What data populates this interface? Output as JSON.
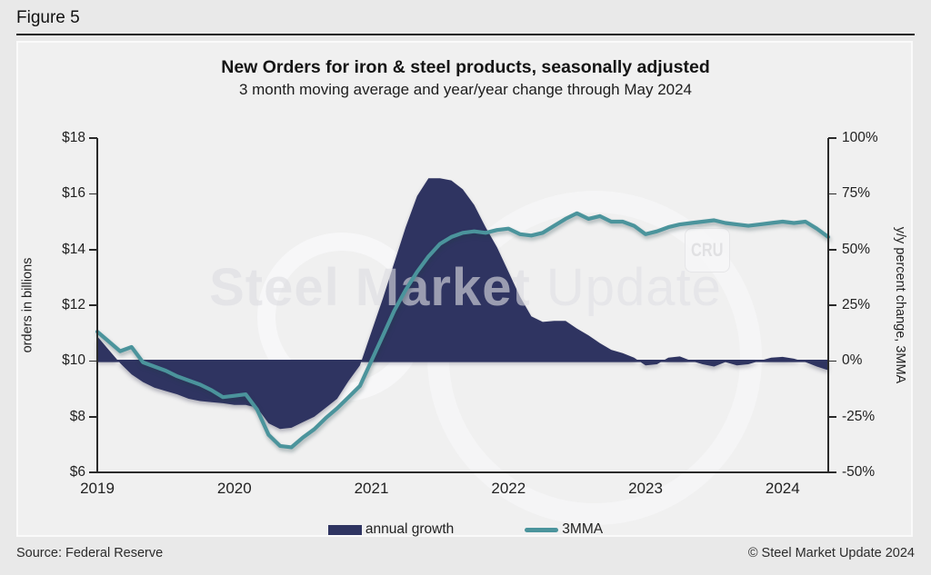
{
  "page": {
    "figure_label": "Figure 5",
    "source": "Source: Federal Reserve",
    "copyright": "© Steel Market Update 2024"
  },
  "chart": {
    "title": "New Orders for iron & steel products, seasonally adjusted",
    "subtitle": "3 month moving average and year/year change through May 2024"
  },
  "axes": {
    "left": {
      "label": "orders in billions",
      "range": [
        6,
        18
      ],
      "ticks": [
        {
          "value": 18,
          "label": "$18"
        },
        {
          "value": 16,
          "label": "$16"
        },
        {
          "value": 14,
          "label": "$14"
        },
        {
          "value": 12,
          "label": "$12"
        },
        {
          "value": 10,
          "label": "$10"
        },
        {
          "value": 8,
          "label": "$8"
        },
        {
          "value": 6,
          "label": "$6"
        }
      ]
    },
    "right": {
      "label": "y/y percent change, 3MMA",
      "range": [
        -50,
        100
      ],
      "ticks": [
        {
          "value": 100,
          "label": "100%"
        },
        {
          "value": 75,
          "label": "75%"
        },
        {
          "value": 50,
          "label": "50%"
        },
        {
          "value": 25,
          "label": "25%"
        },
        {
          "value": 0,
          "label": "0%"
        },
        {
          "value": -25,
          "label": "-25%"
        },
        {
          "value": -50,
          "label": "-50%"
        }
      ]
    },
    "x": {
      "ticks": [
        {
          "month_index": 0,
          "label": "2019"
        },
        {
          "month_index": 12,
          "label": "2020"
        },
        {
          "month_index": 24,
          "label": "2021"
        },
        {
          "month_index": 36,
          "label": "2022"
        },
        {
          "month_index": 48,
          "label": "2023"
        },
        {
          "month_index": 60,
          "label": "2024"
        }
      ]
    }
  },
  "legend": [
    {
      "label": "annual growth",
      "type": "area",
      "color": "#2f3461"
    },
    {
      "label": "3MMA",
      "type": "line",
      "color": "#4b949c"
    }
  ],
  "watermark": {
    "brand_bold": "Steel Market",
    "brand_light": "Update",
    "badge": "CRU"
  },
  "colors": {
    "navy": "#2f3461",
    "teal": "#4b949c",
    "panel_bg": "#f0f0f0",
    "page_bg": "#e9e9e9",
    "axis": "#2a2a2a"
  },
  "chart_data": {
    "type": "combo",
    "frequency": "monthly",
    "x_start": "2019-01",
    "x_end": "2024-05",
    "title": "New Orders for iron & steel products, seasonally adjusted",
    "subtitle": "3 month moving average and year/year change through May 2024",
    "left_axis": {
      "label": "orders in billions",
      "unit": "$ billions",
      "range": [
        6,
        18
      ]
    },
    "right_axis": {
      "label": "y/y percent change, 3MMA",
      "unit": "%",
      "range": [
        -50,
        100
      ]
    },
    "grid": false,
    "legend_position": "bottom",
    "months": [
      "2019-01",
      "2019-02",
      "2019-03",
      "2019-04",
      "2019-05",
      "2019-06",
      "2019-07",
      "2019-08",
      "2019-09",
      "2019-10",
      "2019-11",
      "2019-12",
      "2020-01",
      "2020-02",
      "2020-03",
      "2020-04",
      "2020-05",
      "2020-06",
      "2020-07",
      "2020-08",
      "2020-09",
      "2020-10",
      "2020-11",
      "2020-12",
      "2021-01",
      "2021-02",
      "2021-03",
      "2021-04",
      "2021-05",
      "2021-06",
      "2021-07",
      "2021-08",
      "2021-09",
      "2021-10",
      "2021-11",
      "2021-12",
      "2022-01",
      "2022-02",
      "2022-03",
      "2022-04",
      "2022-05",
      "2022-06",
      "2022-07",
      "2022-08",
      "2022-09",
      "2022-10",
      "2022-11",
      "2022-12",
      "2023-01",
      "2023-02",
      "2023-03",
      "2023-04",
      "2023-05",
      "2023-06",
      "2023-07",
      "2023-08",
      "2023-09",
      "2023-10",
      "2023-11",
      "2023-12",
      "2024-01",
      "2024-02",
      "2024-03",
      "2024-04",
      "2024-05"
    ],
    "series": [
      {
        "name": "annual growth",
        "type": "area",
        "axis": "right",
        "unit": "%",
        "color": "#2f3461",
        "values": [
          11,
          5,
          -1,
          -6,
          -9.5,
          -12,
          -13.5,
          -15,
          -17,
          -18,
          -18.5,
          -19,
          -19.7,
          -19.7,
          -21,
          -28,
          -30.5,
          -30,
          -27.5,
          -25,
          -21,
          -17,
          -9,
          -2,
          13,
          28,
          44,
          60,
          74,
          82,
          82,
          81,
          77,
          70,
          60,
          51,
          40,
          29,
          20,
          17.5,
          18,
          18,
          14.5,
          11.5,
          8,
          5,
          3.5,
          1.5,
          -2,
          -1.5,
          1.5,
          2,
          0,
          -1.5,
          -2.5,
          -0.5,
          -2,
          -1.5,
          0,
          1.5,
          1.8,
          1,
          -0.5,
          -2.5,
          -4.2
        ]
      },
      {
        "name": "3MMA",
        "type": "line",
        "axis": "left",
        "unit": "$ billions",
        "color": "#4b949c",
        "values": [
          11.05,
          10.7,
          10.35,
          10.5,
          9.95,
          9.8,
          9.65,
          9.45,
          9.3,
          9.15,
          8.95,
          8.7,
          8.75,
          8.8,
          8.25,
          7.35,
          6.95,
          6.9,
          7.25,
          7.55,
          7.95,
          8.3,
          8.7,
          9.1,
          10.0,
          10.9,
          11.8,
          12.55,
          13.2,
          13.75,
          14.2,
          14.45,
          14.6,
          14.65,
          14.6,
          14.7,
          14.75,
          14.55,
          14.5,
          14.6,
          14.85,
          15.1,
          15.3,
          15.1,
          15.2,
          15.0,
          15.0,
          14.85,
          14.55,
          14.65,
          14.8,
          14.9,
          14.95,
          15.0,
          15.05,
          14.95,
          14.9,
          14.85,
          14.9,
          14.95,
          15.0,
          14.95,
          15.0,
          14.75,
          14.45
        ]
      }
    ]
  }
}
